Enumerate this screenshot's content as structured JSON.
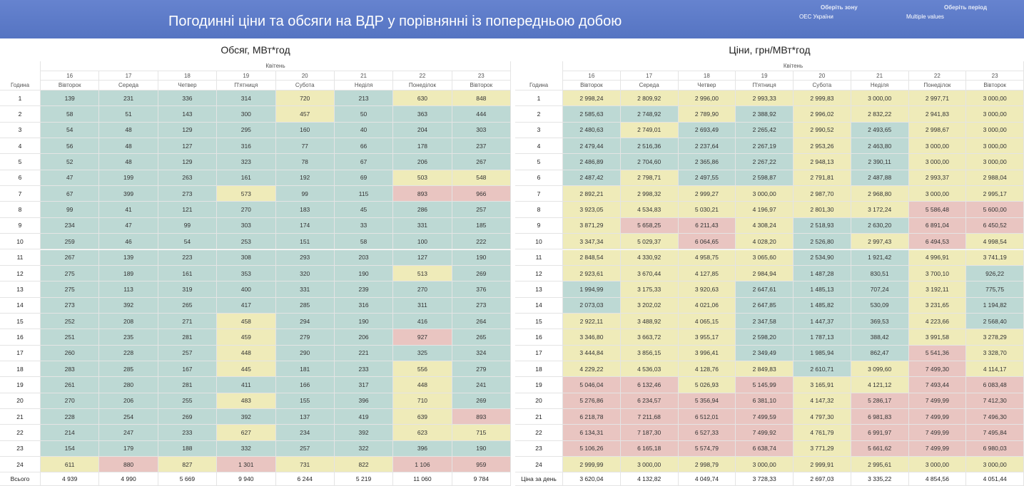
{
  "header": {
    "title": "Погодинні ціни та обсяги на ВДР у порівнянні із попередньою добою",
    "zone_label": "Оберіть зону",
    "zone_value": "ОЕС України",
    "period_label": "Оберіть період",
    "period_value": "Multiple values"
  },
  "volume": {
    "title": "Обсяг, МВт*год",
    "month": "Квітень",
    "row_header": "Година",
    "days": [
      16,
      17,
      18,
      19,
      20,
      21,
      22,
      23
    ],
    "weekdays": [
      "Вівторок",
      "Середа",
      "Четвер",
      "П'ятниця",
      "Субота",
      "Неділя",
      "Понеділок",
      "Вівторок"
    ],
    "hours": [
      1,
      2,
      3,
      4,
      5,
      6,
      7,
      8,
      9,
      10,
      11,
      12,
      13,
      14,
      15,
      16,
      17,
      18,
      19,
      20,
      21,
      22,
      23,
      24
    ],
    "rows": [
      [
        "139",
        "231",
        "336",
        "314",
        "720",
        "213",
        "630",
        "848"
      ],
      [
        "58",
        "51",
        "143",
        "300",
        "457",
        "50",
        "363",
        "444"
      ],
      [
        "54",
        "48",
        "129",
        "295",
        "160",
        "40",
        "204",
        "303"
      ],
      [
        "56",
        "48",
        "127",
        "316",
        "77",
        "66",
        "178",
        "237"
      ],
      [
        "52",
        "48",
        "129",
        "323",
        "78",
        "67",
        "206",
        "267"
      ],
      [
        "47",
        "199",
        "263",
        "161",
        "192",
        "69",
        "503",
        "548"
      ],
      [
        "67",
        "399",
        "273",
        "573",
        "99",
        "115",
        "893",
        "966"
      ],
      [
        "99",
        "41",
        "121",
        "270",
        "183",
        "45",
        "286",
        "257"
      ],
      [
        "234",
        "47",
        "99",
        "303",
        "174",
        "33",
        "331",
        "185"
      ],
      [
        "259",
        "46",
        "54",
        "253",
        "151",
        "58",
        "100",
        "222"
      ],
      [
        "267",
        "139",
        "223",
        "308",
        "293",
        "203",
        "127",
        "190"
      ],
      [
        "275",
        "189",
        "161",
        "353",
        "320",
        "190",
        "513",
        "269"
      ],
      [
        "275",
        "113",
        "319",
        "400",
        "331",
        "239",
        "270",
        "376"
      ],
      [
        "273",
        "392",
        "265",
        "417",
        "285",
        "316",
        "311",
        "273"
      ],
      [
        "252",
        "208",
        "271",
        "458",
        "294",
        "190",
        "416",
        "264"
      ],
      [
        "251",
        "235",
        "281",
        "459",
        "279",
        "206",
        "927",
        "265"
      ],
      [
        "260",
        "228",
        "257",
        "448",
        "290",
        "221",
        "325",
        "324"
      ],
      [
        "283",
        "285",
        "167",
        "445",
        "181",
        "233",
        "556",
        "279"
      ],
      [
        "261",
        "280",
        "281",
        "411",
        "166",
        "317",
        "448",
        "241"
      ],
      [
        "270",
        "206",
        "255",
        "483",
        "155",
        "396",
        "710",
        "269"
      ],
      [
        "228",
        "254",
        "269",
        "392",
        "137",
        "419",
        "639",
        "893"
      ],
      [
        "214",
        "247",
        "233",
        "627",
        "234",
        "392",
        "623",
        "715"
      ],
      [
        "154",
        "179",
        "188",
        "332",
        "257",
        "322",
        "396",
        "190"
      ],
      [
        "611",
        "880",
        "827",
        "1 301",
        "731",
        "822",
        "1 106",
        "959"
      ]
    ],
    "total_label": "Всього",
    "totals": [
      "4 939",
      "4 990",
      "5 669",
      "9 940",
      "6 244",
      "5 219",
      "11 060",
      "9 784"
    ]
  },
  "prices": {
    "title": "Ціни, грн/МВт*год",
    "month": "Квітень",
    "row_header": "Година",
    "days": [
      16,
      17,
      18,
      19,
      20,
      21,
      22,
      23
    ],
    "weekdays": [
      "Вівторок",
      "Середа",
      "Четвер",
      "П'ятниця",
      "Субота",
      "Неділя",
      "Понеділок",
      "Вівторок"
    ],
    "hours": [
      1,
      2,
      3,
      4,
      5,
      6,
      7,
      8,
      9,
      10,
      11,
      12,
      13,
      14,
      15,
      16,
      17,
      18,
      19,
      20,
      21,
      22,
      23,
      24
    ],
    "rows": [
      [
        "2 998,24",
        "2 809,92",
        "2 996,00",
        "2 993,33",
        "2 999,83",
        "3 000,00",
        "2 997,71",
        "3 000,00"
      ],
      [
        "2 585,63",
        "2 748,92",
        "2 789,90",
        "2 388,92",
        "2 996,02",
        "2 832,22",
        "2 941,83",
        "3 000,00"
      ],
      [
        "2 480,63",
        "2 749,01",
        "2 693,49",
        "2 265,42",
        "2 990,52",
        "2 493,65",
        "2 998,67",
        "3 000,00"
      ],
      [
        "2 479,44",
        "2 516,36",
        "2 237,64",
        "2 267,19",
        "2 953,26",
        "2 463,80",
        "3 000,00",
        "3 000,00"
      ],
      [
        "2 486,89",
        "2 704,60",
        "2 365,86",
        "2 267,22",
        "2 948,13",
        "2 390,11",
        "3 000,00",
        "3 000,00"
      ],
      [
        "2 487,42",
        "2 798,71",
        "2 497,55",
        "2 598,87",
        "2 791,81",
        "2 487,88",
        "2 993,37",
        "2 988,04"
      ],
      [
        "2 892,21",
        "2 998,32",
        "2 999,27",
        "3 000,00",
        "2 987,70",
        "2 968,80",
        "3 000,00",
        "2 995,17"
      ],
      [
        "3 923,05",
        "4 534,83",
        "5 030,21",
        "4 196,97",
        "2 801,30",
        "3 172,24",
        "5 586,48",
        "5 600,00"
      ],
      [
        "3 871,29",
        "5 658,25",
        "6 211,43",
        "4 308,24",
        "2 518,93",
        "2 630,20",
        "6 891,04",
        "6 450,52"
      ],
      [
        "3 347,34",
        "5 029,37",
        "6 064,65",
        "4 028,20",
        "2 526,80",
        "2 997,43",
        "6 494,53",
        "4 998,54"
      ],
      [
        "2 848,54",
        "4 330,92",
        "4 958,75",
        "3 065,60",
        "2 534,90",
        "1 921,42",
        "4 996,91",
        "3 741,19"
      ],
      [
        "2 923,61",
        "3 670,44",
        "4 127,85",
        "2 984,94",
        "1 487,28",
        "830,51",
        "3 700,10",
        "926,22"
      ],
      [
        "1 994,99",
        "3 175,33",
        "3 920,63",
        "2 647,61",
        "1 485,13",
        "707,24",
        "3 192,11",
        "775,75"
      ],
      [
        "2 073,03",
        "3 202,02",
        "4 021,06",
        "2 647,85",
        "1 485,82",
        "530,09",
        "3 231,65",
        "1 194,82"
      ],
      [
        "2 922,11",
        "3 488,92",
        "4 065,15",
        "2 347,58",
        "1 447,37",
        "369,53",
        "4 223,66",
        "2 568,40"
      ],
      [
        "3 346,80",
        "3 663,72",
        "3 955,17",
        "2 598,20",
        "1 787,13",
        "388,42",
        "3 991,58",
        "3 278,29"
      ],
      [
        "3 444,84",
        "3 856,15",
        "3 996,41",
        "2 349,49",
        "1 985,94",
        "862,47",
        "5 541,36",
        "3 328,70"
      ],
      [
        "4 229,22",
        "4 536,03",
        "4 128,76",
        "2 849,83",
        "2 610,71",
        "3 099,60",
        "7 499,30",
        "4 114,17"
      ],
      [
        "5 046,04",
        "6 132,46",
        "5 026,93",
        "5 145,99",
        "3 165,91",
        "4 121,12",
        "7 493,44",
        "6 083,48"
      ],
      [
        "5 276,86",
        "6 234,57",
        "5 356,94",
        "6 381,10",
        "4 147,32",
        "5 286,17",
        "7 499,99",
        "7 412,30"
      ],
      [
        "6 218,78",
        "7 211,68",
        "6 512,01",
        "7 499,59",
        "4 797,30",
        "6 981,83",
        "7 499,99",
        "7 496,30"
      ],
      [
        "6 134,31",
        "7 187,30",
        "6 527,33",
        "7 499,92",
        "4 761,79",
        "6 991,97",
        "7 499,99",
        "7 495,84"
      ],
      [
        "5 106,26",
        "6 165,18",
        "5 574,79",
        "6 638,74",
        "3 771,29",
        "5 661,62",
        "7 499,99",
        "6 980,03"
      ],
      [
        "2 999,99",
        "3 000,00",
        "2 998,79",
        "3 000,00",
        "2 999,91",
        "2 995,61",
        "3 000,00",
        "3 000,00"
      ]
    ],
    "total_label": "Ціна за день",
    "totals": [
      "3 620,04",
      "4 132,82",
      "4 049,74",
      "3 728,33",
      "2 697,03",
      "3 335,22",
      "4 854,56",
      "4 051,44"
    ]
  }
}
